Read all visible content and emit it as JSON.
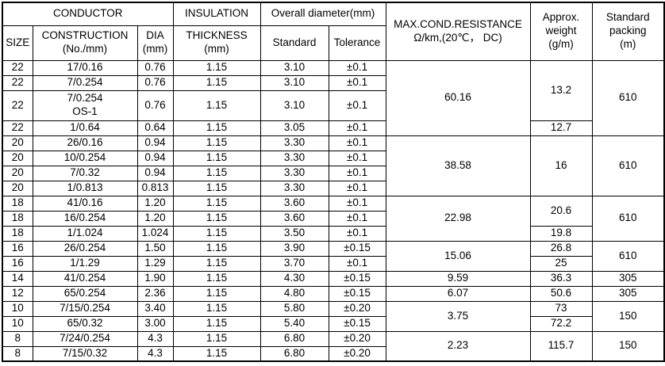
{
  "table": {
    "header": {
      "conductor": "CONDUCTOR",
      "insulation": "INSULATION",
      "overall_diameter": "Overall diameter(mm)",
      "size": "SIZE",
      "construction": "CONSTRUCTION\n(No./mm)",
      "dia": "DIA\n(mm)",
      "thickness": "THICKNESS\n(mm)",
      "standard": "Standard",
      "tolerance": "Tolerance",
      "resistance": "MAX.COND.RESISTANCE\nΩ/km,(20℃， DC)",
      "weight": "Approx.\nweight\n(g/m)",
      "packing": "Standard\npacking\n(m)"
    },
    "rows": [
      {
        "cells": [
          {
            "n": "size",
            "v": "22"
          },
          {
            "n": "construction",
            "v": "17/0.16"
          },
          {
            "n": "dia",
            "v": "0.76"
          },
          {
            "n": "thickness",
            "v": "1.15"
          },
          {
            "n": "standard",
            "v": "3.10"
          },
          {
            "n": "tolerance",
            "v": "±0.1"
          },
          {
            "n": "resistance",
            "v": "60.16",
            "rs": 4
          },
          {
            "n": "weight",
            "v": "13.2",
            "rs": 3
          },
          {
            "n": "packing",
            "v": "610",
            "rs": 4
          }
        ]
      },
      {
        "cells": [
          {
            "n": "size",
            "v": "22"
          },
          {
            "n": "construction",
            "v": "7/0.254"
          },
          {
            "n": "dia",
            "v": "0.76"
          },
          {
            "n": "thickness",
            "v": "1.15"
          },
          {
            "n": "standard",
            "v": "3.10"
          },
          {
            "n": "tolerance",
            "v": "±0.1"
          }
        ]
      },
      {
        "tall": true,
        "cells": [
          {
            "n": "size",
            "v": "22"
          },
          {
            "n": "construction",
            "v": "7/0.254\nOS-1"
          },
          {
            "n": "dia",
            "v": "0.76"
          },
          {
            "n": "thickness",
            "v": "1.15"
          },
          {
            "n": "standard",
            "v": "3.10"
          },
          {
            "n": "tolerance",
            "v": "±0.1"
          }
        ]
      },
      {
        "cells": [
          {
            "n": "size",
            "v": "22"
          },
          {
            "n": "construction",
            "v": "1/0.64"
          },
          {
            "n": "dia",
            "v": "0.64"
          },
          {
            "n": "thickness",
            "v": "1.15"
          },
          {
            "n": "standard",
            "v": "3.05"
          },
          {
            "n": "tolerance",
            "v": "±0.1"
          },
          {
            "n": "weight",
            "v": "12.7"
          }
        ]
      },
      {
        "cells": [
          {
            "n": "size",
            "v": "20"
          },
          {
            "n": "construction",
            "v": "26/0.16"
          },
          {
            "n": "dia",
            "v": "0.94"
          },
          {
            "n": "thickness",
            "v": "1.15"
          },
          {
            "n": "standard",
            "v": "3.30"
          },
          {
            "n": "tolerance",
            "v": "±0.1"
          },
          {
            "n": "resistance",
            "v": "38.58",
            "rs": 4
          },
          {
            "n": "weight",
            "v": "16",
            "rs": 4
          },
          {
            "n": "packing",
            "v": "610",
            "rs": 4
          }
        ]
      },
      {
        "cells": [
          {
            "n": "size",
            "v": "20"
          },
          {
            "n": "construction",
            "v": "10/0.254"
          },
          {
            "n": "dia",
            "v": "0.94"
          },
          {
            "n": "thickness",
            "v": "1.15"
          },
          {
            "n": "standard",
            "v": "3.30"
          },
          {
            "n": "tolerance",
            "v": "±0.1"
          }
        ]
      },
      {
        "cells": [
          {
            "n": "size",
            "v": "20"
          },
          {
            "n": "construction",
            "v": "7/0.32"
          },
          {
            "n": "dia",
            "v": "0.94"
          },
          {
            "n": "thickness",
            "v": "1.15"
          },
          {
            "n": "standard",
            "v": "3.30"
          },
          {
            "n": "tolerance",
            "v": "±0.1"
          }
        ]
      },
      {
        "cells": [
          {
            "n": "size",
            "v": "20"
          },
          {
            "n": "construction",
            "v": "1/0.813"
          },
          {
            "n": "dia",
            "v": "0.813"
          },
          {
            "n": "thickness",
            "v": "1.15"
          },
          {
            "n": "standard",
            "v": "3.30"
          },
          {
            "n": "tolerance",
            "v": "±0.1"
          }
        ]
      },
      {
        "cells": [
          {
            "n": "size",
            "v": "18"
          },
          {
            "n": "construction",
            "v": "41/0.16"
          },
          {
            "n": "dia",
            "v": "1.20"
          },
          {
            "n": "thickness",
            "v": "1.15"
          },
          {
            "n": "standard",
            "v": "3.60"
          },
          {
            "n": "tolerance",
            "v": "±0.1"
          },
          {
            "n": "resistance",
            "v": "22.98",
            "rs": 3
          },
          {
            "n": "weight",
            "v": "20.6",
            "rs": 2
          },
          {
            "n": "packing",
            "v": "610",
            "rs": 3
          }
        ]
      },
      {
        "cells": [
          {
            "n": "size",
            "v": "18"
          },
          {
            "n": "construction",
            "v": "16/0.254"
          },
          {
            "n": "dia",
            "v": "1.20"
          },
          {
            "n": "thickness",
            "v": "1.15"
          },
          {
            "n": "standard",
            "v": "3.60"
          },
          {
            "n": "tolerance",
            "v": "±0.1"
          }
        ]
      },
      {
        "cells": [
          {
            "n": "size",
            "v": "18"
          },
          {
            "n": "construction",
            "v": "1/1.024"
          },
          {
            "n": "dia",
            "v": "1.024"
          },
          {
            "n": "thickness",
            "v": "1.15"
          },
          {
            "n": "standard",
            "v": "3.50"
          },
          {
            "n": "tolerance",
            "v": "±0.1"
          },
          {
            "n": "weight",
            "v": "19.8"
          }
        ]
      },
      {
        "cells": [
          {
            "n": "size",
            "v": "16"
          },
          {
            "n": "construction",
            "v": "26/0.254"
          },
          {
            "n": "dia",
            "v": "1.50"
          },
          {
            "n": "thickness",
            "v": "1.15"
          },
          {
            "n": "standard",
            "v": "3.90"
          },
          {
            "n": "tolerance",
            "v": "±0.15"
          },
          {
            "n": "resistance",
            "v": "15.06",
            "rs": 2
          },
          {
            "n": "weight",
            "v": "26.8"
          },
          {
            "n": "packing",
            "v": "610",
            "rs": 2
          }
        ]
      },
      {
        "cells": [
          {
            "n": "size",
            "v": "16"
          },
          {
            "n": "construction",
            "v": "1/1.29"
          },
          {
            "n": "dia",
            "v": "1.29"
          },
          {
            "n": "thickness",
            "v": "1.15"
          },
          {
            "n": "standard",
            "v": "3.70"
          },
          {
            "n": "tolerance",
            "v": "±0.1"
          },
          {
            "n": "weight",
            "v": "25"
          }
        ]
      },
      {
        "cells": [
          {
            "n": "size",
            "v": "14"
          },
          {
            "n": "construction",
            "v": "41/0.254"
          },
          {
            "n": "dia",
            "v": "1.90"
          },
          {
            "n": "thickness",
            "v": "1.15"
          },
          {
            "n": "standard",
            "v": "4.30"
          },
          {
            "n": "tolerance",
            "v": "±0.15"
          },
          {
            "n": "resistance",
            "v": "9.59"
          },
          {
            "n": "weight",
            "v": "36.3"
          },
          {
            "n": "packing",
            "v": "305"
          }
        ]
      },
      {
        "cells": [
          {
            "n": "size",
            "v": "12"
          },
          {
            "n": "construction",
            "v": "65/0.254"
          },
          {
            "n": "dia",
            "v": "2.36"
          },
          {
            "n": "thickness",
            "v": "1.15"
          },
          {
            "n": "standard",
            "v": "4.80"
          },
          {
            "n": "tolerance",
            "v": "±0.15"
          },
          {
            "n": "resistance",
            "v": "6.07"
          },
          {
            "n": "weight",
            "v": "50.6"
          },
          {
            "n": "packing",
            "v": "305"
          }
        ]
      },
      {
        "cells": [
          {
            "n": "size",
            "v": "10"
          },
          {
            "n": "construction",
            "v": "7/15/0.254"
          },
          {
            "n": "dia",
            "v": "3.40"
          },
          {
            "n": "thickness",
            "v": "1.15"
          },
          {
            "n": "standard",
            "v": "5.80"
          },
          {
            "n": "tolerance",
            "v": "±0.20"
          },
          {
            "n": "resistance",
            "v": "3.75",
            "rs": 2
          },
          {
            "n": "weight",
            "v": "73"
          },
          {
            "n": "packing",
            "v": "150",
            "rs": 2
          }
        ]
      },
      {
        "cells": [
          {
            "n": "size",
            "v": "10"
          },
          {
            "n": "construction",
            "v": "65/0.32"
          },
          {
            "n": "dia",
            "v": "3.00"
          },
          {
            "n": "thickness",
            "v": "1.15"
          },
          {
            "n": "standard",
            "v": "5.40"
          },
          {
            "n": "tolerance",
            "v": "±0.15"
          },
          {
            "n": "weight",
            "v": "72.2"
          }
        ]
      },
      {
        "cells": [
          {
            "n": "size",
            "v": "8"
          },
          {
            "n": "construction",
            "v": "7/24/0.254"
          },
          {
            "n": "dia",
            "v": "4.3"
          },
          {
            "n": "thickness",
            "v": "1.15"
          },
          {
            "n": "standard",
            "v": "6.80"
          },
          {
            "n": "tolerance",
            "v": "±0.20"
          },
          {
            "n": "resistance",
            "v": "2.23",
            "rs": 2
          },
          {
            "n": "weight",
            "v": "115.7",
            "rs": 2
          },
          {
            "n": "packing",
            "v": "150",
            "rs": 2
          }
        ]
      },
      {
        "cells": [
          {
            "n": "size",
            "v": "8"
          },
          {
            "n": "construction",
            "v": "7/15/0.32"
          },
          {
            "n": "dia",
            "v": "4.3"
          },
          {
            "n": "thickness",
            "v": "1.15"
          },
          {
            "n": "standard",
            "v": "6.80"
          },
          {
            "n": "tolerance",
            "v": "±0.20"
          }
        ]
      }
    ]
  }
}
